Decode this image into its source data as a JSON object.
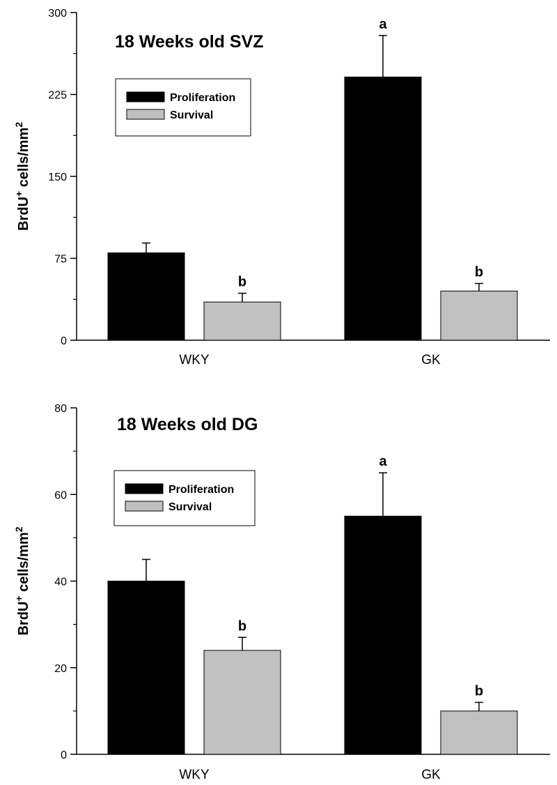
{
  "chart_data": [
    {
      "type": "bar",
      "title": "18 Weeks old SVZ",
      "ylabel": {
        "base": "BrdU",
        "sup1": "+",
        "mid": " cells/mm",
        "sup2": "2"
      },
      "ylim": [
        0,
        300
      ],
      "yticks": [
        "0",
        "75",
        "150",
        "225",
        "300"
      ],
      "categories": [
        "WKY",
        "GK"
      ],
      "series": [
        {
          "name": "Proliferation",
          "color": "#000000",
          "values": [
            80,
            241
          ],
          "errors": [
            9,
            38
          ],
          "sig": [
            "",
            "a"
          ]
        },
        {
          "name": "Survival",
          "color": "#c0c0c0",
          "values": [
            35,
            45
          ],
          "errors": [
            8,
            7
          ],
          "sig": [
            "b",
            "b"
          ]
        }
      ],
      "legend": "upper-left",
      "grid": false
    },
    {
      "type": "bar",
      "title": "18 Weeks old DG",
      "ylabel": {
        "base": "BrdU",
        "sup1": "+",
        "mid": " cells/mm",
        "sup2": "2"
      },
      "ylim": [
        0,
        80
      ],
      "yticks": [
        "0",
        "20",
        "40",
        "60",
        "80"
      ],
      "categories": [
        "WKY",
        "GK"
      ],
      "series": [
        {
          "name": "Proliferation",
          "color": "#000000",
          "values": [
            40,
            55
          ],
          "errors": [
            5,
            10
          ],
          "sig": [
            "",
            "a"
          ]
        },
        {
          "name": "Survival",
          "color": "#c0c0c0",
          "values": [
            24,
            10
          ],
          "errors": [
            3,
            2
          ],
          "sig": [
            "b",
            "b"
          ]
        }
      ],
      "legend": "upper-left",
      "grid": false
    }
  ]
}
